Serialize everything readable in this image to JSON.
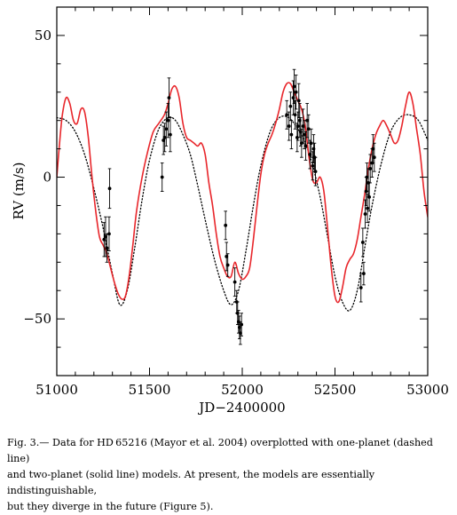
{
  "chart_data": {
    "type": "scatter",
    "xlabel": "JD−2400000",
    "ylabel": "RV (m/s)",
    "xlim": [
      51000,
      53000
    ],
    "ylim": [
      -70,
      60
    ],
    "x_ticks": [
      51000,
      51500,
      52000,
      52500,
      53000
    ],
    "y_ticks": [
      -50,
      0,
      50
    ],
    "x_tick_labels": [
      "51000",
      "51500",
      "52000",
      "52500",
      "53000"
    ],
    "y_tick_labels": [
      "−50",
      "0",
      "50"
    ],
    "grid": false,
    "legend": "none",
    "colors": {
      "solid": "#e8262b",
      "dotted": "#000000",
      "points": "#000000"
    },
    "series": [
      {
        "style": "points-with-error-bars",
        "points": [
          {
            "x": 51255,
            "y": -22,
            "err": 6
          },
          {
            "x": 51263,
            "y": -21,
            "err": 7
          },
          {
            "x": 51270,
            "y": -25,
            "err": 5
          },
          {
            "x": 51282,
            "y": -20,
            "err": 6
          },
          {
            "x": 51285,
            "y": -4,
            "err": 7
          },
          {
            "x": 51568,
            "y": 0,
            "err": 5
          },
          {
            "x": 51575,
            "y": 13,
            "err": 5
          },
          {
            "x": 51582,
            "y": 14,
            "err": 5
          },
          {
            "x": 51590,
            "y": 17,
            "err": 6
          },
          {
            "x": 51600,
            "y": 20,
            "err": 6
          },
          {
            "x": 51605,
            "y": 28,
            "err": 7
          },
          {
            "x": 51612,
            "y": 15,
            "err": 6
          },
          {
            "x": 51910,
            "y": -17,
            "err": 5
          },
          {
            "x": 51915,
            "y": -28,
            "err": 5
          },
          {
            "x": 51922,
            "y": -31,
            "err": 4
          },
          {
            "x": 51960,
            "y": -37,
            "err": 5
          },
          {
            "x": 51970,
            "y": -44,
            "err": 4
          },
          {
            "x": 51975,
            "y": -48,
            "err": 4
          },
          {
            "x": 51980,
            "y": -51,
            "err": 4
          },
          {
            "x": 51985,
            "y": -53,
            "err": 4
          },
          {
            "x": 51990,
            "y": -55,
            "err": 4
          },
          {
            "x": 51996,
            "y": -52,
            "err": 4
          },
          {
            "x": 52240,
            "y": 22,
            "err": 5
          },
          {
            "x": 52252,
            "y": 18,
            "err": 5
          },
          {
            "x": 52260,
            "y": 25,
            "err": 5
          },
          {
            "x": 52265,
            "y": 15,
            "err": 5
          },
          {
            "x": 52275,
            "y": 28,
            "err": 6
          },
          {
            "x": 52280,
            "y": 32,
            "err": 6
          },
          {
            "x": 52285,
            "y": 22,
            "err": 5
          },
          {
            "x": 52290,
            "y": 30,
            "err": 6
          },
          {
            "x": 52296,
            "y": 14,
            "err": 5
          },
          {
            "x": 52300,
            "y": 18,
            "err": 5
          },
          {
            "x": 52305,
            "y": 27,
            "err": 6
          },
          {
            "x": 52310,
            "y": 20,
            "err": 6
          },
          {
            "x": 52315,
            "y": 16,
            "err": 5
          },
          {
            "x": 52320,
            "y": 12,
            "err": 5
          },
          {
            "x": 52328,
            "y": 18,
            "err": 6
          },
          {
            "x": 52335,
            "y": 15,
            "err": 5
          },
          {
            "x": 52342,
            "y": 11,
            "err": 5
          },
          {
            "x": 52350,
            "y": 20,
            "err": 6
          },
          {
            "x": 52358,
            "y": 17,
            "err": 5
          },
          {
            "x": 52365,
            "y": 8,
            "err": 5
          },
          {
            "x": 52372,
            "y": 12,
            "err": 5
          },
          {
            "x": 52380,
            "y": 4,
            "err": 5
          },
          {
            "x": 52385,
            "y": 10,
            "err": 5
          },
          {
            "x": 52390,
            "y": 7,
            "err": 5
          },
          {
            "x": 52395,
            "y": 2,
            "err": 5
          },
          {
            "x": 52640,
            "y": -39,
            "err": 5
          },
          {
            "x": 52650,
            "y": -23,
            "err": 5
          },
          {
            "x": 52655,
            "y": -34,
            "err": 4
          },
          {
            "x": 52663,
            "y": -13,
            "err": 5
          },
          {
            "x": 52668,
            "y": -5,
            "err": 5
          },
          {
            "x": 52672,
            "y": 0,
            "err": 5
          },
          {
            "x": 52675,
            "y": -11,
            "err": 5
          },
          {
            "x": 52680,
            "y": -2,
            "err": 5
          },
          {
            "x": 52685,
            "y": -7,
            "err": 5
          },
          {
            "x": 52690,
            "y": 3,
            "err": 5
          },
          {
            "x": 52700,
            "y": 5,
            "err": 5
          },
          {
            "x": 52705,
            "y": 10,
            "err": 5
          },
          {
            "x": 52712,
            "y": 7,
            "err": 5
          }
        ]
      },
      {
        "style": "dotted-line",
        "x": [
          51000,
          51050,
          51100,
          51150,
          51200,
          51250,
          51300,
          51340,
          51380,
          51420,
          51460,
          51500,
          51550,
          51600,
          51640,
          51680,
          51720,
          51760,
          51800,
          51850,
          51900,
          51940,
          51980,
          52020,
          52060,
          52100,
          52150,
          52200,
          52250,
          52300,
          52340,
          52380,
          52420,
          52460,
          52500,
          52540,
          52580,
          52620,
          52660,
          52700,
          52750,
          52800,
          52850,
          52900,
          52950,
          53000
        ],
        "y": [
          21,
          20,
          16,
          8,
          -4,
          -18,
          -34,
          -45,
          -40,
          -25,
          -8,
          6,
          17,
          21,
          20,
          15,
          8,
          -3,
          -15,
          -29,
          -40,
          -45,
          -40,
          -26,
          -10,
          4,
          16,
          21,
          21,
          17,
          12,
          4,
          -7,
          -21,
          -35,
          -44,
          -47,
          -40,
          -25,
          -10,
          5,
          16,
          21,
          22,
          20,
          13
        ]
      },
      {
        "style": "solid-line",
        "x": [
          51000,
          51015,
          51030,
          51050,
          51070,
          51090,
          51110,
          51130,
          51150,
          51170,
          51190,
          51210,
          51230,
          51250,
          51270,
          51290,
          51310,
          51330,
          51350,
          51370,
          51390,
          51410,
          51430,
          51460,
          51490,
          51520,
          51550,
          51580,
          51600,
          51620,
          51640,
          51660,
          51680,
          51700,
          51720,
          51740,
          51760,
          51780,
          51800,
          51820,
          51840,
          51860,
          51880,
          51900,
          51920,
          51940,
          51960,
          51980,
          52000,
          52020,
          52040,
          52060,
          52080,
          52100,
          52120,
          52140,
          52160,
          52180,
          52200,
          52220,
          52240,
          52260,
          52280,
          52300,
          52320,
          52340,
          52360,
          52380,
          52400,
          52420,
          52440,
          52460,
          52480,
          52500,
          52520,
          52540,
          52560,
          52580,
          52600,
          52620,
          52640,
          52660,
          52680,
          52700,
          52720,
          52740,
          52760,
          52780,
          52800,
          52820,
          52840,
          52860,
          52880,
          52900,
          52920,
          52940,
          52960,
          52980,
          53000
        ],
        "y": [
          0,
          12,
          22,
          28,
          26,
          20,
          19,
          24,
          23,
          14,
          0,
          -12,
          -21,
          -24,
          -27,
          -32,
          -37,
          -41,
          -43,
          -42,
          -35,
          -24,
          -12,
          0,
          9,
          16,
          19,
          22,
          26,
          31,
          32,
          28,
          19,
          14,
          13,
          12,
          11,
          12,
          8,
          -2,
          -10,
          -20,
          -28,
          -32,
          -35,
          -35,
          -30,
          -34,
          -36,
          -35,
          -32,
          -22,
          -10,
          1,
          8,
          12,
          15,
          19,
          24,
          30,
          33,
          33,
          30,
          27,
          24,
          18,
          7,
          -1,
          -2,
          0,
          -5,
          -18,
          -32,
          -42,
          -44,
          -39,
          -32,
          -29,
          -27,
          -22,
          -14,
          -6,
          3,
          10,
          15,
          18,
          20,
          18,
          15,
          12,
          13,
          18,
          25,
          30,
          26,
          17,
          8,
          -5,
          -14
        ]
      }
    ]
  },
  "caption": {
    "lines": [
      "Fig. 3.— Data for HD 65216 (Mayor et al. 2004) overplotted with one-planet (dashed line)",
      "and two-planet (solid line) models. At present, the models are essentially indistinguishable,",
      "but they diverge in the future (Figure 5)."
    ]
  }
}
